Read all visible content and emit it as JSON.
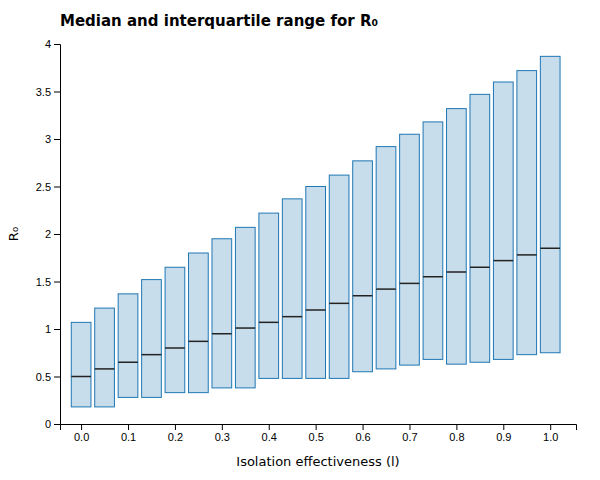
{
  "chart_data": {
    "type": "box",
    "title": "Median and interquartile range for R₀",
    "xlabel": "Isolation effectiveness (l)",
    "ylabel": "R₀",
    "x": [
      0.0,
      0.05,
      0.1,
      0.15,
      0.2,
      0.25,
      0.3,
      0.35,
      0.4,
      0.45,
      0.5,
      0.55,
      0.6,
      0.65,
      0.7,
      0.75,
      0.8,
      0.85,
      0.9,
      0.95,
      1.0
    ],
    "q1": [
      0.18,
      0.18,
      0.28,
      0.28,
      0.33,
      0.33,
      0.38,
      0.38,
      0.48,
      0.48,
      0.48,
      0.48,
      0.55,
      0.58,
      0.62,
      0.68,
      0.63,
      0.65,
      0.68,
      0.73,
      0.75
    ],
    "median": [
      0.5,
      0.58,
      0.65,
      0.73,
      0.8,
      0.87,
      0.95,
      1.01,
      1.07,
      1.13,
      1.2,
      1.27,
      1.35,
      1.42,
      1.48,
      1.55,
      1.6,
      1.65,
      1.72,
      1.78,
      1.85
    ],
    "q3": [
      1.07,
      1.22,
      1.37,
      1.52,
      1.65,
      1.8,
      1.95,
      2.07,
      2.22,
      2.37,
      2.5,
      2.62,
      2.77,
      2.92,
      3.05,
      3.18,
      3.32,
      3.47,
      3.6,
      3.72,
      3.87
    ],
    "xlim": [
      -0.045,
      1.055
    ],
    "xticks": [
      {
        "value": 0.0,
        "label": "0.0"
      },
      0.1,
      0.2,
      0.3,
      0.4,
      0.5,
      0.6,
      0.7,
      0.8,
      0.9,
      {
        "value": 1.0,
        "label": "1.0"
      }
    ],
    "ylim": [
      0,
      4
    ],
    "yticks": [
      0,
      0.5,
      1,
      1.5,
      2,
      2.5,
      3,
      3.5,
      4
    ],
    "grid": false
  }
}
